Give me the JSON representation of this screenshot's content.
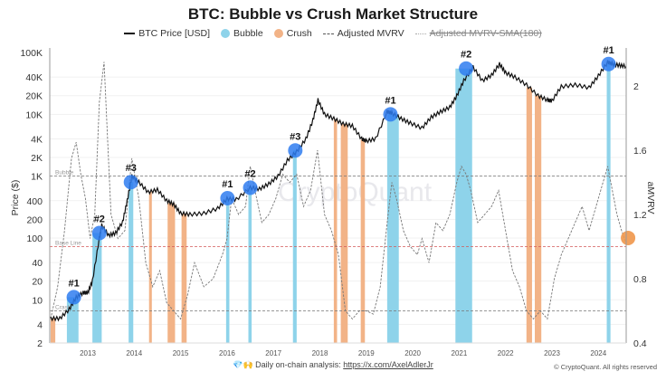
{
  "chart_data": {
    "type": "line",
    "title": "BTC: Bubble vs Crush Market Structure",
    "legend": [
      {
        "label": "BTC Price [USD]",
        "style": "solid-line",
        "color": "#111111"
      },
      {
        "label": "Bubble",
        "style": "dot",
        "color": "#8ed3ea"
      },
      {
        "label": "Crush",
        "style": "dot",
        "color": "#f2b387"
      },
      {
        "label": "Adjusted MVRV",
        "style": "dashed-line",
        "color": "#666666"
      },
      {
        "label": "Adjusted MVRV-SMA(180)",
        "style": "dotted-line-strikethrough",
        "color": "#999999"
      }
    ],
    "legend_placement": "top-center",
    "ylabel_left": "Price ($)",
    "ylabel_right": "aMVRV",
    "y_left_scale": "log",
    "y_left_ticks": [
      "100K",
      "40K",
      "20K",
      "10K",
      "4K",
      "2K",
      "1K",
      "400",
      "200",
      "100",
      "40",
      "20",
      "10",
      "4",
      "2"
    ],
    "y_left_tick_values": [
      100000,
      40000,
      20000,
      10000,
      4000,
      2000,
      1000,
      400,
      200,
      100,
      40,
      20,
      10,
      4,
      2
    ],
    "ylim_left": [
      2,
      100000
    ],
    "y_right_ticks": [
      "2",
      "1.6",
      "1.2",
      "0.8",
      "0.4"
    ],
    "y_right_tick_values": [
      2,
      1.6,
      1.2,
      0.8,
      0.4
    ],
    "ylim_right": [
      0.4,
      2.15
    ],
    "x_ticks": [
      "2013",
      "2014",
      "2015",
      "2016",
      "2017",
      "2018",
      "2019",
      "2020",
      "2021",
      "2022",
      "2023",
      "2024"
    ],
    "xlim": [
      2012.2,
      2024.6
    ],
    "reference_lines": [
      {
        "label": "Bubble",
        "value": 1.44,
        "axis": "right",
        "color": "#777777"
      },
      {
        "label": "Base Line",
        "value": 1.0,
        "axis": "right",
        "color": "#d45a5a"
      },
      {
        "label": "Crash",
        "value": 0.6,
        "axis": "right",
        "color": "#777777"
      }
    ],
    "btc_price": {
      "name": "BTC Price [USD]",
      "x": [
        2012.2,
        2012.4,
        2012.6,
        2012.75,
        2012.9,
        2013.0,
        2013.1,
        2013.25,
        2013.3,
        2013.45,
        2013.6,
        2013.75,
        2013.85,
        2013.95,
        2014.1,
        2014.3,
        2014.5,
        2014.7,
        2014.85,
        2015.0,
        2015.2,
        2015.5,
        2015.8,
        2016.0,
        2016.2,
        2016.5,
        2016.7,
        2016.9,
        2017.1,
        2017.3,
        2017.5,
        2017.7,
        2017.85,
        2017.96,
        2018.1,
        2018.3,
        2018.5,
        2018.7,
        2018.9,
        2019.0,
        2019.2,
        2019.45,
        2019.55,
        2019.75,
        2019.95,
        2020.2,
        2020.4,
        2020.6,
        2020.8,
        2020.95,
        2021.1,
        2021.3,
        2021.5,
        2021.7,
        2021.87,
        2022.0,
        2022.2,
        2022.45,
        2022.7,
        2022.9,
        2023.0,
        2023.2,
        2023.5,
        2023.8,
        2024.0,
        2024.2,
        2024.3,
        2024.45,
        2024.6
      ],
      "values": [
        5,
        5,
        7,
        11,
        13,
        13,
        20,
        100,
        160,
        110,
        120,
        180,
        400,
        1000,
        800,
        550,
        600,
        400,
        350,
        250,
        240,
        250,
        300,
        430,
        420,
        650,
        620,
        750,
        1000,
        1800,
        2500,
        4000,
        8000,
        17000,
        10000,
        8500,
        7000,
        6500,
        4000,
        3700,
        4000,
        11000,
        10500,
        8500,
        7200,
        6000,
        9000,
        11000,
        13000,
        20000,
        35000,
        58000,
        35000,
        43000,
        65000,
        47000,
        40000,
        30000,
        20000,
        17000,
        16500,
        28000,
        30000,
        27000,
        42000,
        70000,
        65000,
        62000,
        60000
      ]
    },
    "adjusted_mvrv": {
      "name": "Adjusted MVRV",
      "x": [
        2012.2,
        2012.35,
        2012.5,
        2012.65,
        2012.75,
        2012.85,
        2012.95,
        2013.05,
        2013.15,
        2013.25,
        2013.35,
        2013.5,
        2013.65,
        2013.8,
        2013.95,
        2014.1,
        2014.25,
        2014.4,
        2014.55,
        2014.7,
        2014.85,
        2015.0,
        2015.15,
        2015.3,
        2015.5,
        2015.7,
        2015.9,
        2016.0,
        2016.1,
        2016.25,
        2016.4,
        2016.5,
        2016.6,
        2016.75,
        2016.9,
        2017.05,
        2017.2,
        2017.35,
        2017.5,
        2017.65,
        2017.8,
        2017.95,
        2018.1,
        2018.25,
        2018.4,
        2018.55,
        2018.7,
        2018.85,
        2019.0,
        2019.15,
        2019.3,
        2019.45,
        2019.55,
        2019.65,
        2019.8,
        2019.95,
        2020.1,
        2020.2,
        2020.35,
        2020.5,
        2020.65,
        2020.8,
        2020.95,
        2021.05,
        2021.15,
        2021.25,
        2021.4,
        2021.55,
        2021.7,
        2021.85,
        2022.0,
        2022.15,
        2022.3,
        2022.45,
        2022.6,
        2022.75,
        2022.9,
        2023.05,
        2023.2,
        2023.35,
        2023.5,
        2023.65,
        2023.8,
        2023.95,
        2024.1,
        2024.2,
        2024.3,
        2024.4,
        2024.5,
        2024.6
      ],
      "values": [
        0.55,
        0.75,
        1.1,
        1.55,
        1.65,
        1.45,
        1.3,
        1.05,
        1.2,
        1.9,
        2.15,
        1.2,
        1.05,
        1.1,
        1.55,
        1.3,
        0.9,
        0.75,
        0.85,
        0.65,
        0.6,
        0.55,
        0.7,
        0.9,
        0.75,
        0.8,
        0.95,
        1.05,
        1.3,
        1.2,
        1.25,
        1.5,
        1.35,
        1.15,
        1.2,
        1.3,
        1.45,
        1.4,
        1.45,
        1.25,
        1.35,
        1.6,
        1.2,
        1.1,
        0.95,
        0.6,
        0.55,
        0.6,
        0.6,
        0.58,
        0.75,
        1.15,
        1.4,
        1.3,
        1.1,
        1.0,
        0.95,
        1.05,
        0.9,
        1.15,
        1.1,
        1.2,
        1.4,
        1.5,
        1.45,
        1.35,
        1.15,
        1.2,
        1.25,
        1.35,
        1.1,
        0.85,
        0.75,
        0.6,
        0.55,
        0.6,
        0.55,
        0.8,
        0.95,
        1.05,
        1.15,
        1.25,
        1.1,
        1.25,
        1.4,
        1.5,
        1.35,
        1.2,
        1.1,
        1.02
      ]
    },
    "bubble_periods": [
      [
        2012.55,
        2012.8
      ],
      [
        2013.1,
        2013.3
      ],
      [
        2013.88,
        2013.98
      ],
      [
        2015.98,
        2016.05
      ],
      [
        2016.46,
        2016.53
      ],
      [
        2017.42,
        2017.5
      ],
      [
        2019.45,
        2019.7
      ],
      [
        2020.92,
        2021.28
      ],
      [
        2024.18,
        2024.26
      ]
    ],
    "crush_periods": [
      [
        2012.2,
        2012.3
      ],
      [
        2014.32,
        2014.38
      ],
      [
        2014.72,
        2014.88
      ],
      [
        2015.02,
        2015.13
      ],
      [
        2018.3,
        2018.37
      ],
      [
        2018.45,
        2018.6
      ],
      [
        2018.88,
        2018.97
      ],
      [
        2022.45,
        2022.57
      ],
      [
        2022.63,
        2022.77
      ]
    ],
    "peak_markers": [
      {
        "label": "#1",
        "x": 2012.7,
        "value": 11
      },
      {
        "label": "#2",
        "x": 2013.25,
        "value": 120
      },
      {
        "label": "#3",
        "x": 2013.93,
        "value": 800
      },
      {
        "label": "#1",
        "x": 2016.01,
        "value": 440
      },
      {
        "label": "#2",
        "x": 2016.5,
        "value": 650
      },
      {
        "label": "#3",
        "x": 2017.47,
        "value": 2600
      },
      {
        "label": "#1",
        "x": 2019.52,
        "value": 10000
      },
      {
        "label": "#2",
        "x": 2021.15,
        "value": 55000
      },
      {
        "label": "#1",
        "x": 2024.22,
        "value": 65000
      }
    ],
    "current_marker": {
      "x": 2024.6,
      "value": 1.02,
      "axis": "right",
      "color": "#f0964a"
    },
    "watermark": "CryptoQuant"
  },
  "footer": {
    "text": "Daily on-chain analysis: ",
    "link": "https://x.com/AxelAdlerJr",
    "emoji": "💎🙌",
    "copyright": "© CryptoQuant. All rights reserved"
  }
}
